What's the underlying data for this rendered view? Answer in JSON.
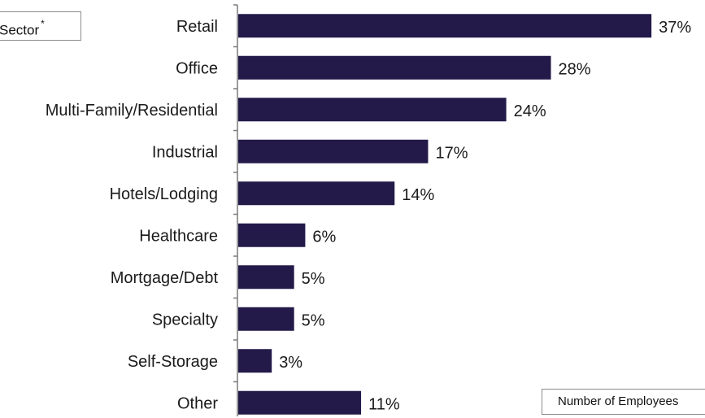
{
  "legend_boxes": {
    "sector_text": "Sector",
    "sector_mark": "*",
    "employees_text": "Number of Employees"
  },
  "chart_data": {
    "type": "bar",
    "orientation": "horizontal",
    "categories": [
      "Retail",
      "Office",
      "Multi-Family/Residential",
      "Industrial",
      "Hotels/Lodging",
      "Healthcare",
      "Mortgage/Debt",
      "Specialty",
      "Self-Storage",
      "Other"
    ],
    "values": [
      37,
      28,
      24,
      17,
      14,
      6,
      5,
      5,
      3,
      11
    ],
    "value_labels": [
      "37%",
      "28%",
      "24%",
      "17%",
      "14%",
      "6%",
      "5%",
      "5%",
      "3%",
      "11%"
    ],
    "xlim": [
      0,
      37.5
    ],
    "bar_color": "#231a4a",
    "grid": false
  }
}
